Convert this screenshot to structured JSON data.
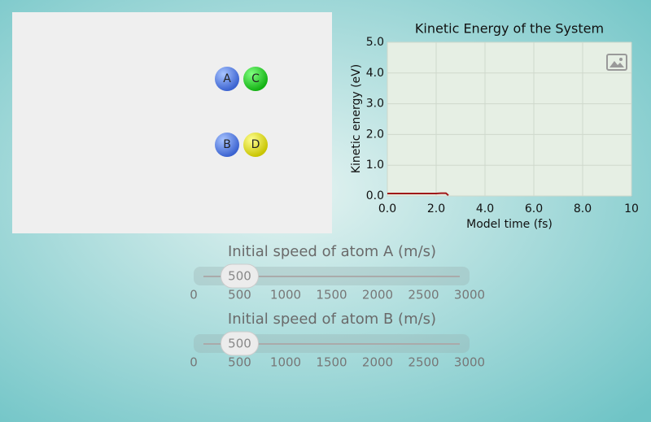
{
  "model": {
    "atoms": [
      "A",
      "C",
      "B",
      "D"
    ]
  },
  "chart_data": {
    "type": "line",
    "title": "Kinetic Energy of the System",
    "x_label": "Model time (fs)",
    "y_label": "Kinetic energy (eV)",
    "x": [
      0,
      0.5,
      1.0,
      1.5,
      2.0,
      2.2,
      2.4,
      2.5
    ],
    "values": [
      0.08,
      0.08,
      0.08,
      0.08,
      0.08,
      0.09,
      0.09,
      0.02
    ],
    "color": "#a01818",
    "xlim": [
      0,
      10
    ],
    "ylim": [
      0,
      5
    ],
    "xticks": [
      {
        "value": 0,
        "label": "0.0"
      },
      {
        "value": 2,
        "label": "2.0"
      },
      {
        "value": 4,
        "label": "4.0"
      },
      {
        "value": 6,
        "label": "6.0"
      },
      {
        "value": 8,
        "label": "8.0"
      },
      10
    ],
    "yticks": [
      {
        "value": 0,
        "label": "0.0"
      },
      {
        "value": 1,
        "label": "1.0"
      },
      {
        "value": 2,
        "label": "2.0"
      },
      {
        "value": 3,
        "label": "3.0"
      },
      {
        "value": 4,
        "label": "4.0"
      },
      {
        "value": 5,
        "label": "5.0"
      }
    ],
    "grid": true
  },
  "sliders": [
    {
      "label": "Initial speed of atom A (m/s)",
      "value": 500,
      "range": [
        0,
        3000
      ],
      "ticks": [
        0,
        500,
        1000,
        1500,
        2000,
        2500,
        3000
      ]
    },
    {
      "label": "Initial speed of atom B (m/s)",
      "value": 500,
      "range": [
        0,
        3000
      ],
      "ticks": [
        0,
        500,
        1000,
        1500,
        2000,
        2500,
        3000
      ]
    }
  ]
}
